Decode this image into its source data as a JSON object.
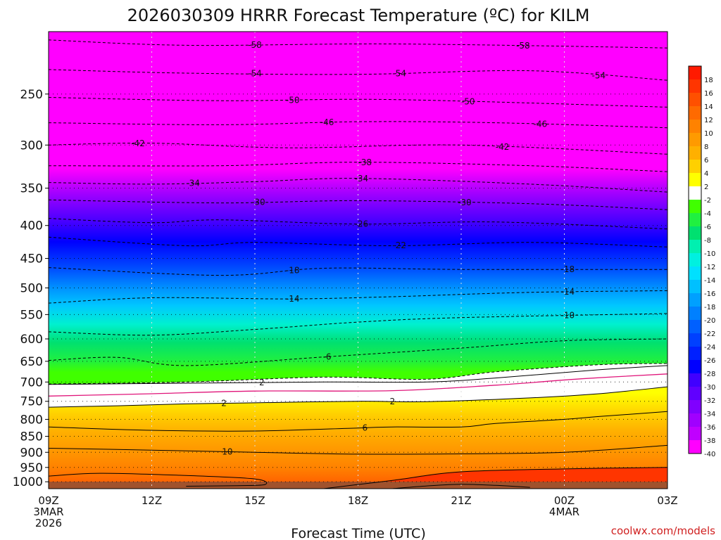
{
  "chart_data": {
    "type": "heatmap",
    "title": "2026030309 HRRR Forecast Temperature (ºC) for KILM",
    "xlabel": "Forecast Time (UTC)",
    "credit": "coolwx.com/models",
    "x_ticks": [
      {
        "hour": 0,
        "label": "09Z",
        "sub1": "3MAR",
        "sub2": "2026"
      },
      {
        "hour": 3,
        "label": "12Z"
      },
      {
        "hour": 6,
        "label": "15Z"
      },
      {
        "hour": 9,
        "label": "18Z"
      },
      {
        "hour": 12,
        "label": "21Z"
      },
      {
        "hour": 15,
        "label": "00Z",
        "sub1": "4MAR"
      },
      {
        "hour": 18,
        "label": "03Z"
      }
    ],
    "y_ticks": [
      250,
      300,
      350,
      400,
      450,
      500,
      550,
      600,
      650,
      700,
      750,
      800,
      850,
      900,
      950,
      1000
    ],
    "y_range": [
      200,
      1025
    ],
    "y_scale": "log",
    "x_range": [
      0,
      18
    ],
    "grid": "dotted",
    "colorbar_labels": [
      "18",
      "16",
      "14",
      "12",
      "10",
      "8",
      "6",
      "4",
      "2",
      "-2",
      "-4",
      "-6",
      "-8",
      "-10",
      "-12",
      "-14",
      "-16",
      "-18",
      "-20",
      "-22",
      "-24",
      "-26",
      "-28",
      "-30",
      "-32",
      "-34",
      "-36",
      "-38",
      "-40"
    ],
    "colorbar_colors": [
      "#ff1a00",
      "#ff3500",
      "#ff5000",
      "#ff6a00",
      "#ff8200",
      "#ff9a00",
      "#ffb000",
      "#ffd000",
      "#ffff00",
      "#ffffff",
      "#40ff00",
      "#20f040",
      "#00e070",
      "#00f0b0",
      "#00f0e0",
      "#00e0ff",
      "#00c0ff",
      "#00a0ff",
      "#0080ff",
      "#0060ff",
      "#0040ff",
      "#0020ff",
      "#0000ff",
      "#4000ff",
      "#6000ff",
      "#8000ff",
      "#a000ff",
      "#c000ff",
      "#ff00ff"
    ],
    "contours": [
      {
        "value": -58,
        "label": "-58",
        "color": "#000000",
        "dash": true,
        "points": [
          [
            0,
            206
          ],
          [
            4,
            210
          ],
          [
            10,
            209
          ],
          [
            18,
            212
          ]
        ],
        "label_hours": [
          6,
          13.8
        ]
      },
      {
        "value": -54,
        "label": "-54",
        "color": "#000000",
        "dash": true,
        "points": [
          [
            0,
            229
          ],
          [
            4,
            232
          ],
          [
            9,
            233
          ],
          [
            14,
            230
          ],
          [
            18,
            238
          ]
        ],
        "label_hours": [
          6,
          10.2,
          16
        ]
      },
      {
        "value": -50,
        "label": "-50",
        "color": "#000000",
        "dash": true,
        "points": [
          [
            0,
            253
          ],
          [
            5,
            256
          ],
          [
            10,
            255
          ],
          [
            18,
            262
          ]
        ],
        "label_hours": [
          7.1,
          12.2
        ]
      },
      {
        "value": -46,
        "label": "-46",
        "color": "#000000",
        "dash": true,
        "points": [
          [
            0,
            277
          ],
          [
            5,
            279
          ],
          [
            9,
            276
          ],
          [
            13,
            277
          ],
          [
            18,
            282
          ]
        ],
        "label_hours": [
          8.1,
          14.3
        ]
      },
      {
        "value": -42,
        "label": "-42",
        "color": "#000000",
        "dash": true,
        "points": [
          [
            0,
            300
          ],
          [
            3,
            298
          ],
          [
            7,
            303
          ],
          [
            12,
            300
          ],
          [
            18,
            310
          ]
        ],
        "label_hours": [
          2.6,
          13.2
        ]
      },
      {
        "value": -38,
        "label": "-38",
        "color": "#000000",
        "dash": true,
        "points": [
          [
            0,
            323
          ],
          [
            5,
            323
          ],
          [
            9,
            319
          ],
          [
            14,
            323
          ],
          [
            18,
            330
          ]
        ],
        "label_hours": [
          9.2
        ]
      },
      {
        "value": -34,
        "label": "-34",
        "color": "#000000",
        "dash": true,
        "points": [
          [
            0,
            343
          ],
          [
            3,
            345
          ],
          [
            6,
            342
          ],
          [
            9,
            338
          ],
          [
            14,
            345
          ],
          [
            18,
            355
          ]
        ],
        "label_hours": [
          4.2,
          9.1
        ]
      },
      {
        "value": -30,
        "label": "-30",
        "color": "#000000",
        "dash": true,
        "points": [
          [
            0,
            365
          ],
          [
            5,
            369
          ],
          [
            9,
            366
          ],
          [
            14,
            370
          ],
          [
            18,
            378
          ]
        ],
        "label_hours": [
          6.1,
          12.1
        ]
      },
      {
        "value": -26,
        "label": "-26",
        "color": "#000000",
        "dash": true,
        "points": [
          [
            0,
            390
          ],
          [
            3,
            396
          ],
          [
            5,
            392
          ],
          [
            9,
            398
          ],
          [
            13,
            395
          ],
          [
            18,
            405
          ]
        ],
        "label_hours": [
          9.1
        ]
      },
      {
        "value": -22,
        "label": "-22",
        "color": "#000000",
        "dash": true,
        "points": [
          [
            0,
            417
          ],
          [
            4,
            430
          ],
          [
            6,
            425
          ],
          [
            10,
            430
          ],
          [
            14,
            425
          ],
          [
            18,
            432
          ]
        ],
        "label_hours": [
          10.2
        ]
      },
      {
        "value": -18,
        "label": "-18",
        "color": "#000000",
        "dash": true,
        "points": [
          [
            0,
            465
          ],
          [
            5,
            478
          ],
          [
            8,
            466
          ],
          [
            12,
            468
          ],
          [
            18,
            468
          ]
        ],
        "label_hours": [
          7.1,
          15.1
        ]
      },
      {
        "value": -14,
        "label": "-14",
        "color": "#000000",
        "dash": true,
        "points": [
          [
            0,
            528
          ],
          [
            3,
            518
          ],
          [
            7,
            520
          ],
          [
            10,
            516
          ],
          [
            14,
            508
          ],
          [
            18,
            505
          ]
        ],
        "label_hours": [
          7.1,
          15.1
        ]
      },
      {
        "value": -10,
        "label": "-10",
        "color": "#000000",
        "dash": true,
        "points": [
          [
            0,
            585
          ],
          [
            3,
            592
          ],
          [
            6,
            580
          ],
          [
            9,
            565
          ],
          [
            12,
            556
          ],
          [
            18,
            548
          ]
        ],
        "label_hours": [
          15.1
        ]
      },
      {
        "value": -6,
        "label": "-6",
        "color": "#000000",
        "dash": true,
        "points": [
          [
            0,
            648
          ],
          [
            2,
            641
          ],
          [
            4,
            660
          ],
          [
            8,
            640
          ],
          [
            12,
            620
          ],
          [
            15,
            604
          ],
          [
            18,
            600
          ]
        ],
        "label_hours": [
          8.1
        ]
      },
      {
        "value": -2,
        "label": "",
        "color": "#000000",
        "dash": true,
        "points": [
          [
            0,
            705
          ],
          [
            4,
            700
          ],
          [
            8,
            688
          ],
          [
            11,
            693
          ],
          [
            13,
            675
          ],
          [
            16,
            658
          ],
          [
            18,
            655
          ]
        ],
        "label_hours": []
      },
      {
        "value": 2,
        "label": "2",
        "color": "#000000",
        "dash": false,
        "points": [
          [
            0,
            706
          ],
          [
            4,
            703
          ],
          [
            8,
            700
          ],
          [
            11,
            700
          ],
          [
            13,
            690
          ],
          [
            16,
            670
          ],
          [
            18,
            660
          ]
        ],
        "label_hours": [
          6.2
        ]
      },
      {
        "value": 0,
        "label": "",
        "color": "#e0157a",
        "dash": false,
        "points": [
          [
            0,
            736
          ],
          [
            3,
            730
          ],
          [
            6,
            723
          ],
          [
            10,
            722
          ],
          [
            13,
            708
          ],
          [
            15.5,
            692
          ],
          [
            18,
            680
          ]
        ],
        "label_hours": []
      },
      {
        "value": 2,
        "label": "2",
        "color": "#000000",
        "dash": false,
        "points": [
          [
            0,
            766
          ],
          [
            2,
            762
          ],
          [
            4,
            757
          ],
          [
            6,
            754
          ],
          [
            9,
            750
          ],
          [
            11,
            751
          ],
          [
            14,
            741
          ],
          [
            16,
            730
          ],
          [
            18,
            712
          ]
        ],
        "label_hours": [
          5.1,
          10
        ]
      },
      {
        "value": 6,
        "label": "6",
        "color": "#000000",
        "dash": false,
        "points": [
          [
            0,
            822
          ],
          [
            3,
            832
          ],
          [
            6,
            834
          ],
          [
            9,
            825
          ],
          [
            10,
            822
          ],
          [
            12,
            822
          ],
          [
            13,
            812
          ],
          [
            15,
            800
          ],
          [
            16,
            792
          ],
          [
            18,
            778
          ]
        ],
        "label_hours": [
          9.2
        ]
      },
      {
        "value": 10,
        "label": "10",
        "color": "#000000",
        "dash": false,
        "points": [
          [
            0,
            887
          ],
          [
            3,
            893
          ],
          [
            6,
            900
          ],
          [
            9,
            906
          ],
          [
            12,
            905
          ],
          [
            15,
            900
          ],
          [
            18,
            878
          ]
        ],
        "label_hours": [
          5.2
        ]
      },
      {
        "value": 14,
        "label": "",
        "color": "#000000",
        "dash": false,
        "points": [
          [
            0,
            980
          ],
          [
            1.5,
            970
          ],
          [
            4,
            978
          ],
          [
            6,
            990
          ],
          [
            6.3,
            1010
          ],
          [
            5.5,
            1014
          ],
          [
            4,
            1016
          ]
        ],
        "label_hours": []
      },
      {
        "value": 14,
        "label": "",
        "color": "#000000",
        "dash": false,
        "points": [
          [
            8,
            1025
          ],
          [
            10,
            995
          ],
          [
            12,
            965
          ],
          [
            15,
            955
          ],
          [
            18,
            950
          ]
        ],
        "label_hours": []
      },
      {
        "value": 18,
        "label": "",
        "color": "#000000",
        "dash": false,
        "points": [
          [
            10,
            1025
          ],
          [
            11,
            1015
          ],
          [
            12,
            1009
          ],
          [
            13,
            1013
          ],
          [
            14,
            1020
          ]
        ],
        "label_hours": []
      }
    ]
  }
}
